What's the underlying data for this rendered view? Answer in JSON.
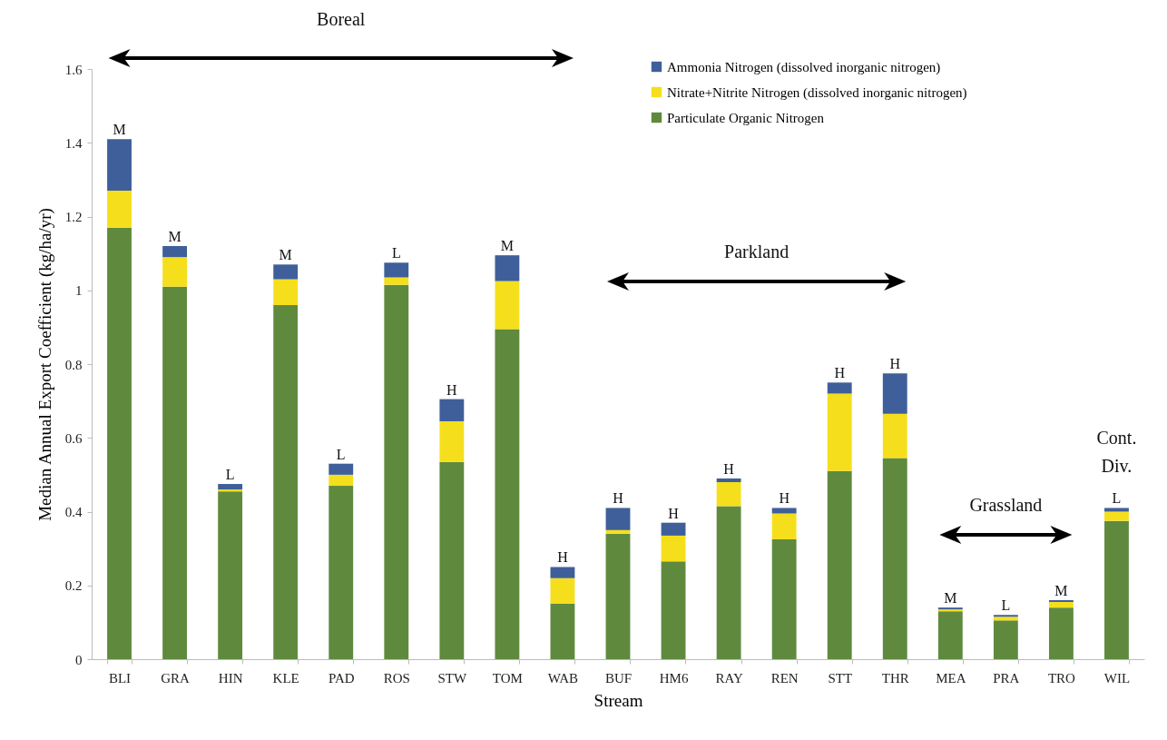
{
  "chart_data": {
    "type": "bar",
    "stacked": true,
    "xlabel": "Stream",
    "ylabel": "Median Annual Export Coefficient (kg/ha/yr)",
    "categories": [
      "BLI",
      "GRA",
      "HIN",
      "KLE",
      "PAD",
      "ROS",
      "STW",
      "TOM",
      "WAB",
      "BUF",
      "HM6",
      "RAY",
      "REN",
      "STT",
      "THR",
      "MEA",
      "PRA",
      "TRO",
      "WIL"
    ],
    "series": [
      {
        "name": "Particulate Organic Nitrogen",
        "color": "#5f8a3e",
        "values": [
          1.17,
          1.01,
          0.455,
          0.96,
          0.47,
          1.015,
          0.535,
          0.895,
          0.15,
          0.34,
          0.265,
          0.415,
          0.325,
          0.51,
          0.545,
          0.13,
          0.105,
          0.14,
          0.375
        ]
      },
      {
        "name": "Nitrate+Nitrite Nitrogen (dissolved inorganic nitrogen)",
        "color": "#f5df1c",
        "values": [
          0.1,
          0.08,
          0.005,
          0.07,
          0.03,
          0.02,
          0.11,
          0.13,
          0.07,
          0.01,
          0.07,
          0.065,
          0.07,
          0.21,
          0.12,
          0.005,
          0.01,
          0.015,
          0.025
        ]
      },
      {
        "name": "Ammonia Nitrogen (dissolved inorganic nitrogen)",
        "color": "#3f5f9a",
        "values": [
          0.14,
          0.03,
          0.015,
          0.04,
          0.03,
          0.04,
          0.06,
          0.07,
          0.03,
          0.06,
          0.035,
          0.01,
          0.015,
          0.03,
          0.11,
          0.005,
          0.005,
          0.005,
          0.01
        ]
      }
    ],
    "ylim": [
      0,
      1.6
    ],
    "yticks": [
      0,
      0.2,
      0.4,
      0.6,
      0.8,
      1,
      1.2,
      1.4,
      1.6
    ],
    "legend": "top right",
    "annotations": [
      "Boreal",
      "Parkland",
      "Grassland",
      "Cont. Div.",
      {
        "text": "M",
        "x": "BLI",
        "y": 1.41
      },
      {
        "text": "M",
        "x": "GRA",
        "y": 1.12
      },
      {
        "text": "L",
        "x": "HIN",
        "y": 0.475
      },
      {
        "text": "M",
        "x": "KLE",
        "y": 1.07
      },
      {
        "text": "L",
        "x": "PAD",
        "y": 0.53
      },
      {
        "text": "L",
        "x": "ROS",
        "y": 1.075
      },
      {
        "text": "H",
        "x": "STW",
        "y": 0.705
      },
      {
        "text": "M",
        "x": "TOM",
        "y": 1.095
      },
      {
        "text": "H",
        "x": "WAB",
        "y": 0.25
      },
      {
        "text": "H",
        "x": "BUF",
        "y": 0.41
      },
      {
        "text": "H",
        "x": "HM6",
        "y": 0.37
      },
      {
        "text": "H",
        "x": "RAY",
        "y": 0.49
      },
      {
        "text": "H",
        "x": "REN",
        "y": 0.41
      },
      {
        "text": "H",
        "x": "STT",
        "y": 0.75
      },
      {
        "text": "H",
        "x": "THR",
        "y": 0.775
      },
      {
        "text": "M",
        "x": "MEA",
        "y": 0.14
      },
      {
        "text": "L",
        "x": "PRA",
        "y": 0.12
      },
      {
        "text": "M",
        "x": "TRO",
        "y": 0.16
      },
      {
        "text": "L",
        "x": "WIL",
        "y": 0.41
      }
    ]
  }
}
